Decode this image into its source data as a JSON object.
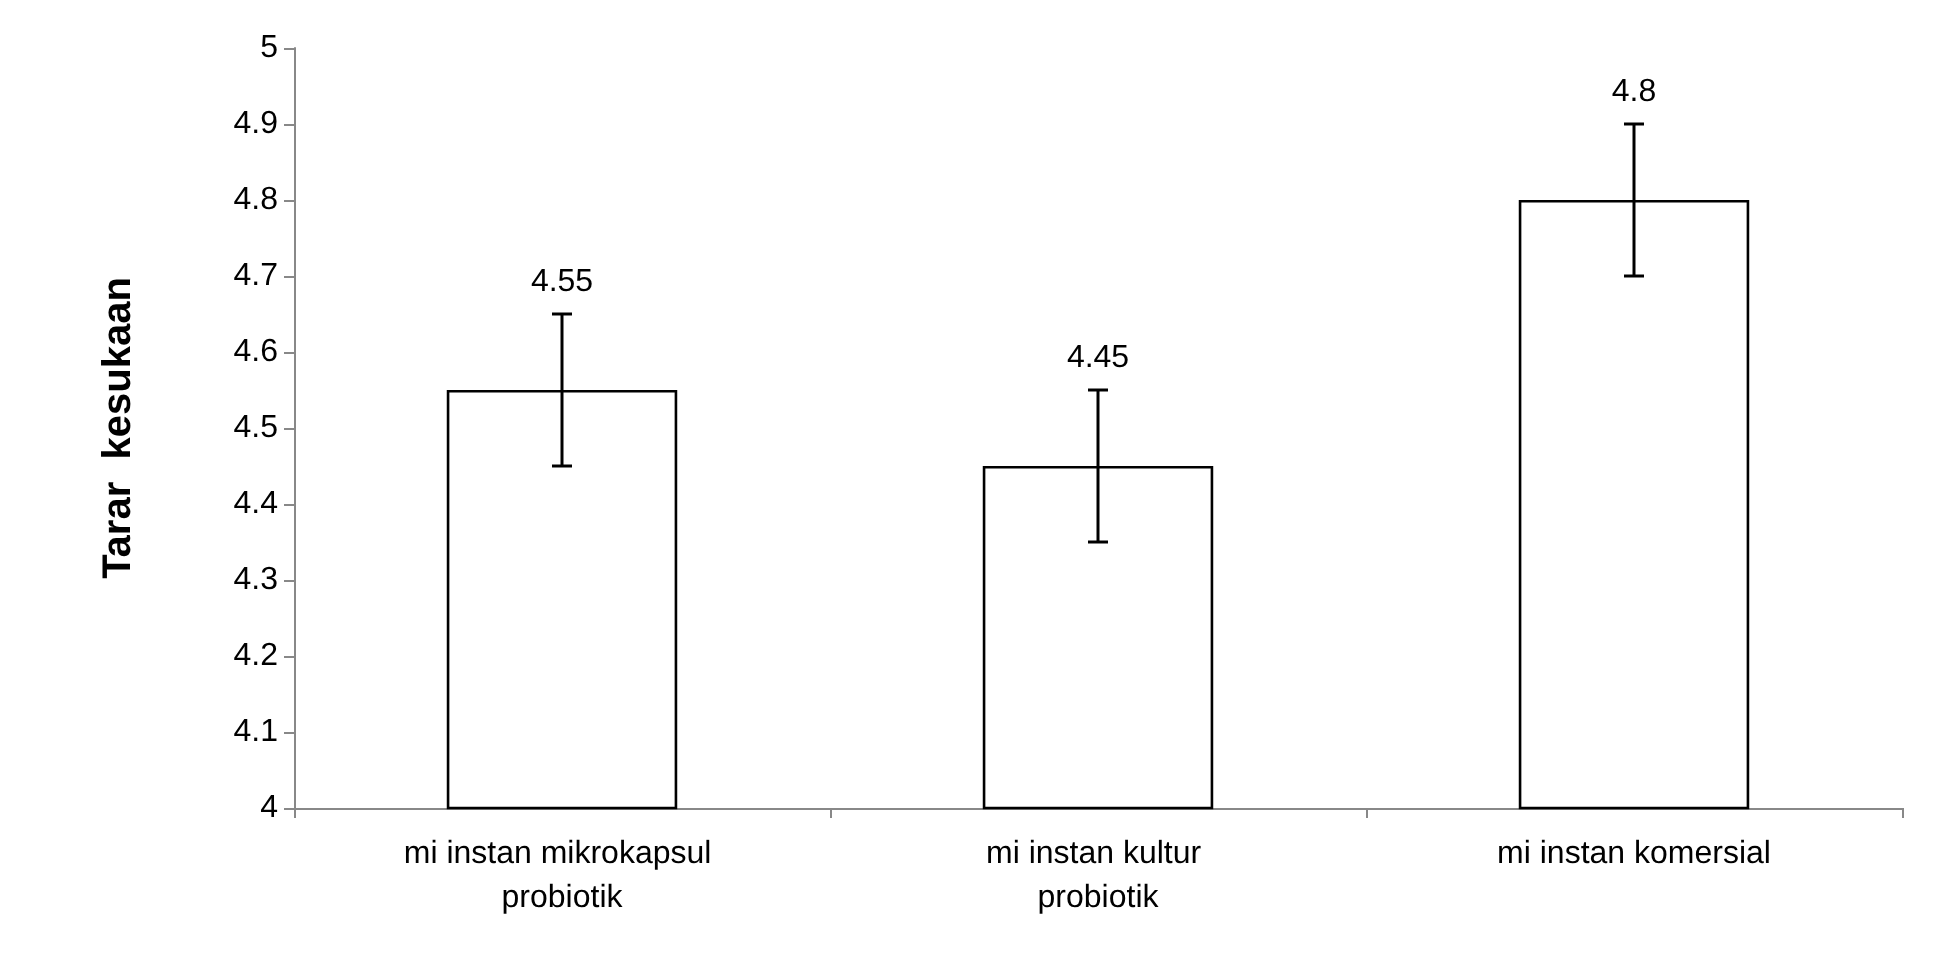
{
  "chart_data": {
    "type": "bar",
    "ylabel": "Tarar  kesukaan",
    "categories": [
      "mi instan mikrokapsul probiotik",
      "mi instan kultur probiotik",
      "mi instan komersial"
    ],
    "values": [
      4.55,
      4.45,
      4.8
    ],
    "errors": [
      0.1,
      0.1,
      0.1
    ],
    "color": "#ffffff",
    "ylim": [
      4,
      5
    ],
    "yticks": [
      4,
      4.1,
      4.2,
      4.3,
      4.4,
      4.5,
      4.6,
      4.7,
      4.8,
      4.9,
      5
    ],
    "data_labels": true,
    "grid": false
  }
}
